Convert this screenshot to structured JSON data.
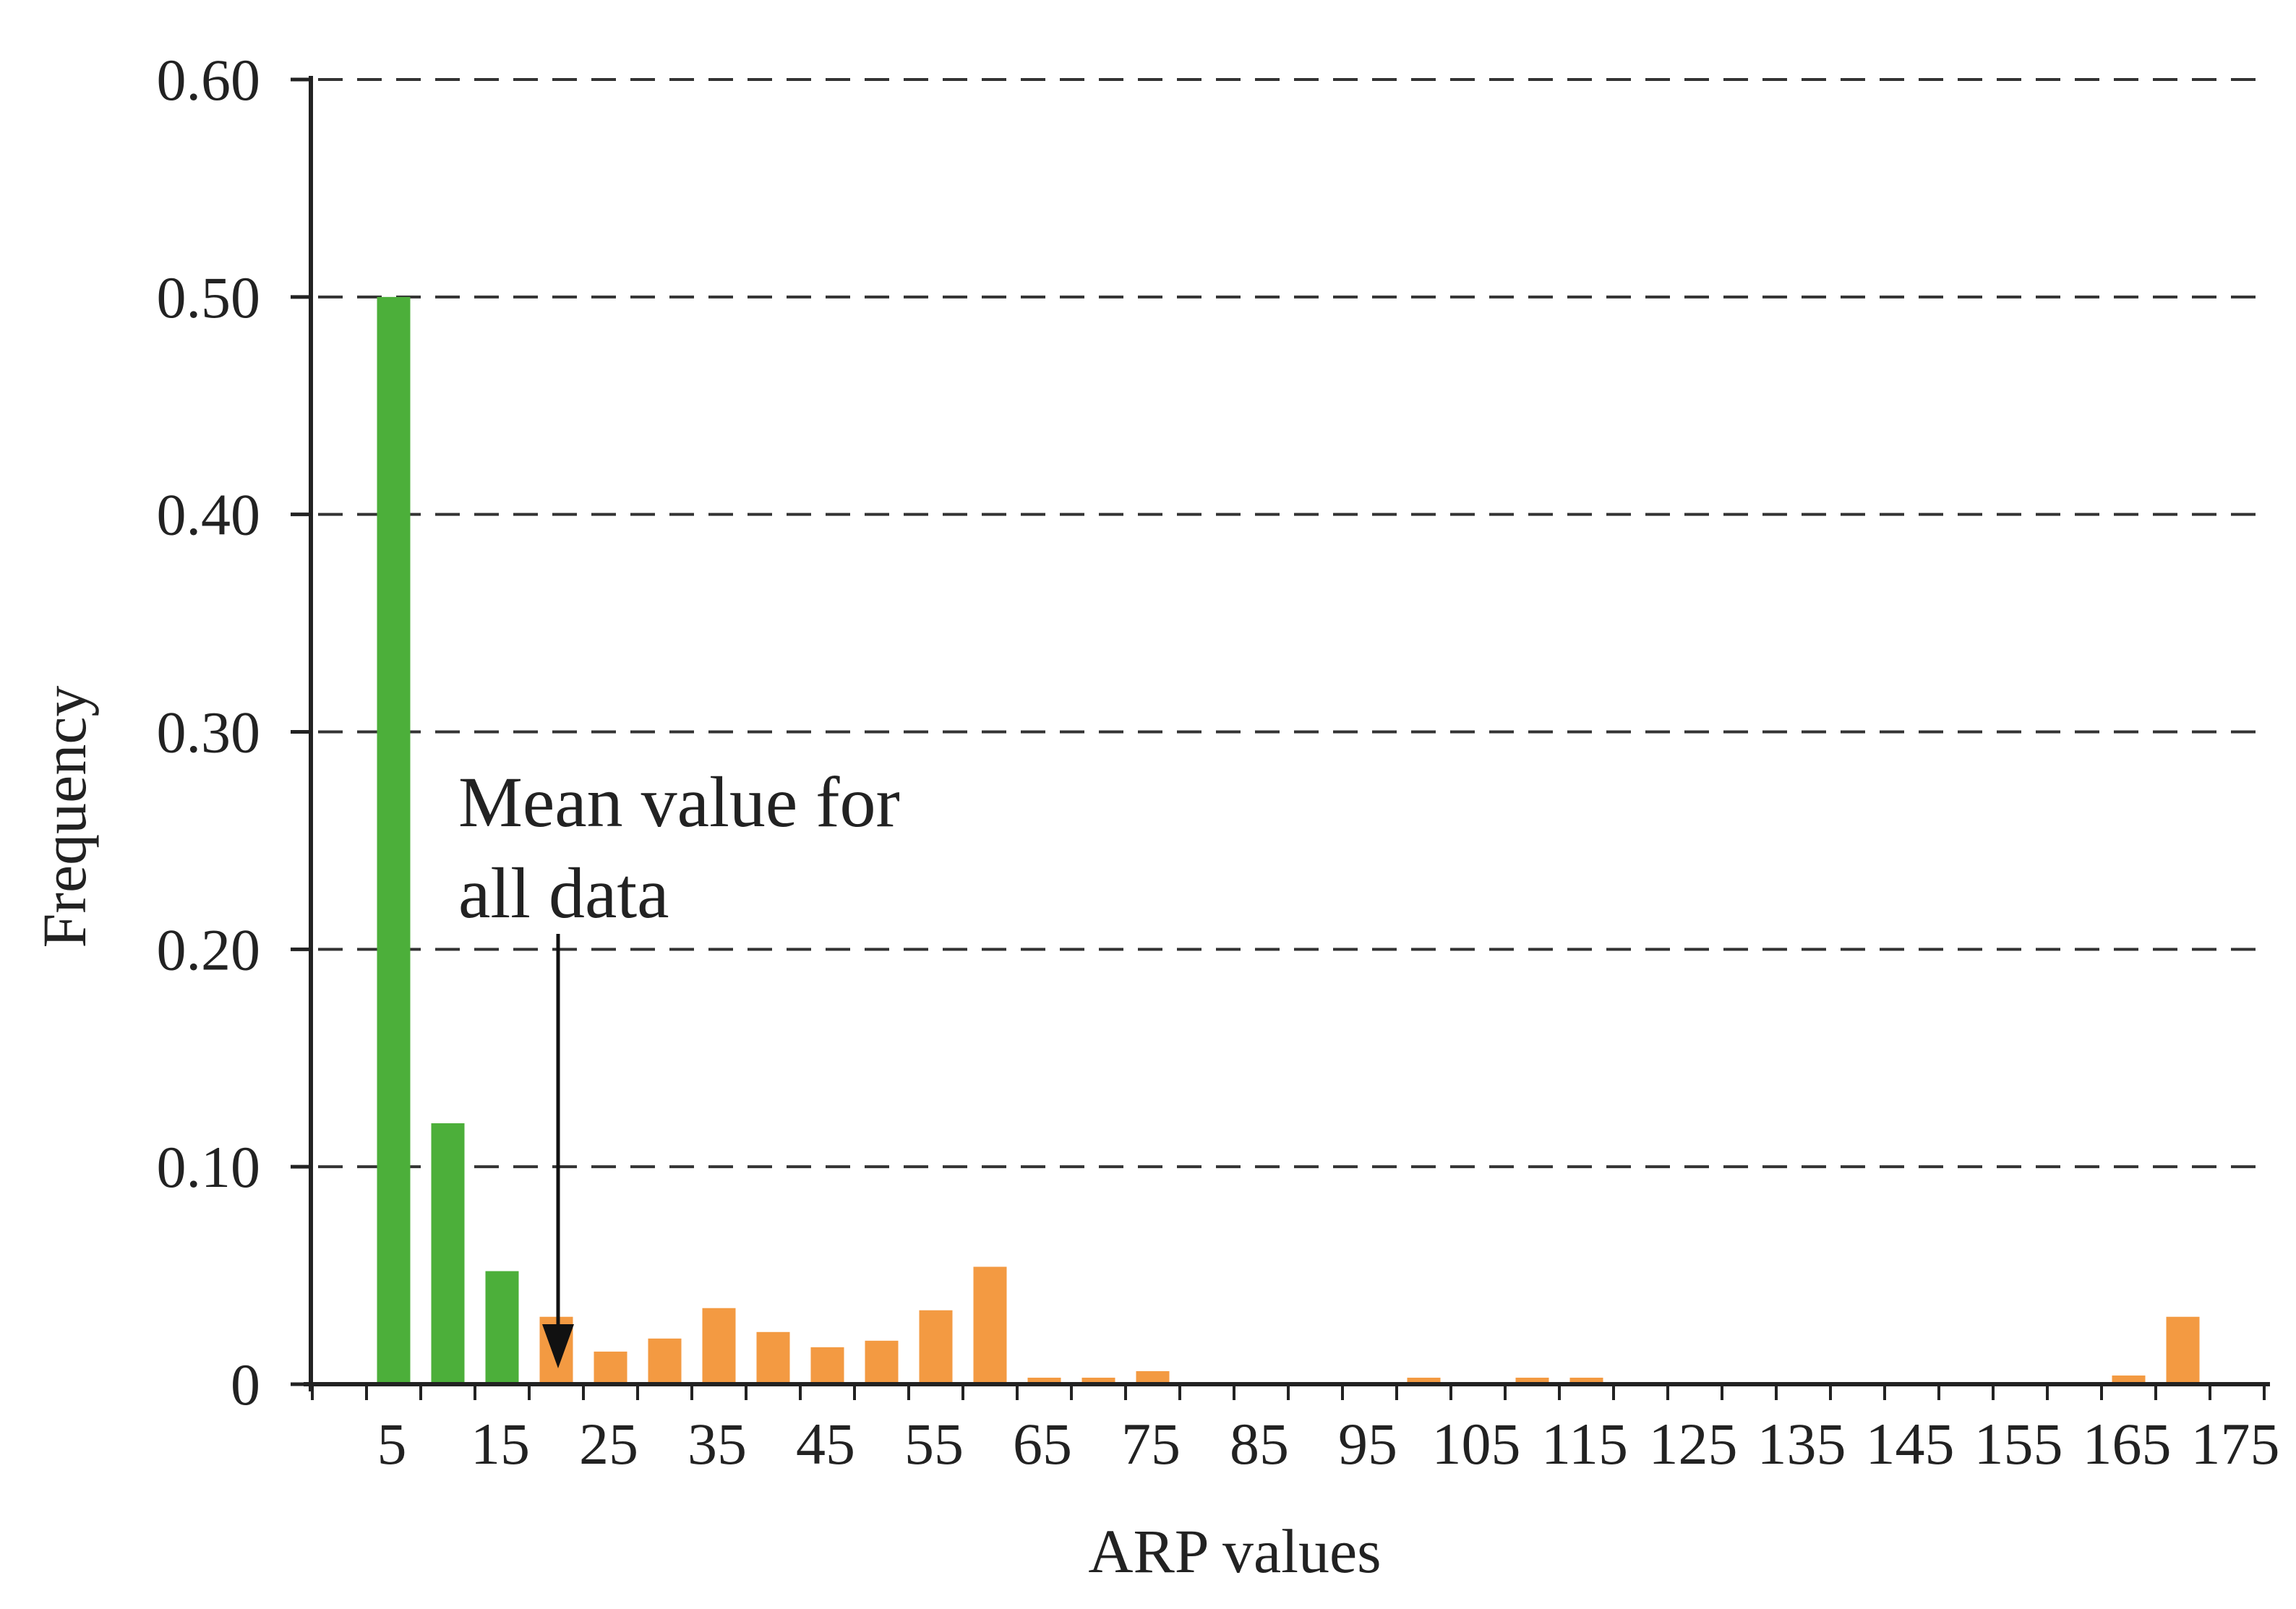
{
  "chart_data": {
    "type": "bar",
    "title": "",
    "xlabel": "ARP values",
    "ylabel": "Frequency",
    "ylim": [
      0,
      0.6
    ],
    "y_ticks": [
      {
        "value": 0,
        "label": "0"
      },
      {
        "value": 0.1,
        "label": "0.10"
      },
      {
        "value": 0.2,
        "label": "0.20"
      },
      {
        "value": 0.3,
        "label": "0.30"
      },
      {
        "value": 0.4,
        "label": "0.40"
      },
      {
        "value": 0.5,
        "label": "0.50"
      },
      {
        "value": 0.6,
        "label": "0.60"
      }
    ],
    "x_tick_labels": [
      "5",
      "15",
      "25",
      "35",
      "45",
      "55",
      "65",
      "75",
      "85",
      "95",
      "105",
      "115",
      "125",
      "135",
      "145",
      "155",
      "165",
      "175"
    ],
    "grid": "horizontal dashed",
    "colors": {
      "low": "#4caf3a",
      "high": "#f39a42"
    },
    "bars": [
      {
        "x": 0,
        "value": 0.001,
        "group": "low"
      },
      {
        "x": 5,
        "value": 0.5,
        "group": "low"
      },
      {
        "x": 10,
        "value": 0.12,
        "group": "low"
      },
      {
        "x": 15,
        "value": 0.052,
        "group": "low"
      },
      {
        "x": 20,
        "value": 0.031,
        "group": "high"
      },
      {
        "x": 25,
        "value": 0.015,
        "group": "high"
      },
      {
        "x": 30,
        "value": 0.021,
        "group": "high"
      },
      {
        "x": 35,
        "value": 0.035,
        "group": "high"
      },
      {
        "x": 40,
        "value": 0.024,
        "group": "high"
      },
      {
        "x": 45,
        "value": 0.017,
        "group": "high"
      },
      {
        "x": 50,
        "value": 0.02,
        "group": "high"
      },
      {
        "x": 55,
        "value": 0.034,
        "group": "high"
      },
      {
        "x": 60,
        "value": 0.054,
        "group": "high"
      },
      {
        "x": 65,
        "value": 0.003,
        "group": "high"
      },
      {
        "x": 70,
        "value": 0.003,
        "group": "high"
      },
      {
        "x": 75,
        "value": 0.006,
        "group": "high"
      },
      {
        "x": 80,
        "value": 0.001,
        "group": "high"
      },
      {
        "x": 85,
        "value": 0.0,
        "group": "high"
      },
      {
        "x": 90,
        "value": 0.001,
        "group": "high"
      },
      {
        "x": 95,
        "value": 0.001,
        "group": "high"
      },
      {
        "x": 100,
        "value": 0.003,
        "group": "high"
      },
      {
        "x": 105,
        "value": 0.001,
        "group": "high"
      },
      {
        "x": 110,
        "value": 0.003,
        "group": "high"
      },
      {
        "x": 115,
        "value": 0.003,
        "group": "high"
      },
      {
        "x": 120,
        "value": 0.001,
        "group": "high"
      },
      {
        "x": 125,
        "value": 0.0,
        "group": "high"
      },
      {
        "x": 130,
        "value": 0.0,
        "group": "high"
      },
      {
        "x": 135,
        "value": 0.001,
        "group": "high"
      },
      {
        "x": 140,
        "value": 0.001,
        "group": "high"
      },
      {
        "x": 145,
        "value": 0.001,
        "group": "high"
      },
      {
        "x": 150,
        "value": 0.001,
        "group": "high"
      },
      {
        "x": 155,
        "value": 0.001,
        "group": "high"
      },
      {
        "x": 160,
        "value": 0.001,
        "group": "high"
      },
      {
        "x": 165,
        "value": 0.004,
        "group": "high"
      },
      {
        "x": 170,
        "value": 0.031,
        "group": "high"
      }
    ],
    "annotation": {
      "lines": [
        "Mean value for",
        "all data"
      ],
      "points_to_x": 20
    }
  }
}
